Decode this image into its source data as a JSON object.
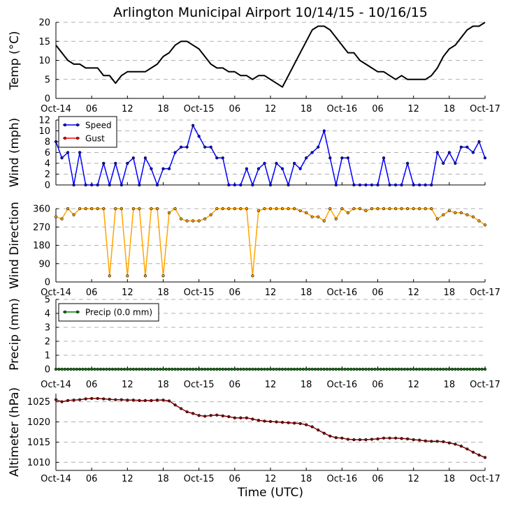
{
  "chart_data": {
    "type": "line",
    "title": "Arlington Municipal Airport 10/14/15 - 10/16/15",
    "xlabel": "Time (UTC)",
    "x_tick_labels": [
      "Oct-14",
      "06",
      "12",
      "18",
      "Oct-15",
      "06",
      "12",
      "18",
      "Oct-16",
      "06",
      "12",
      "18",
      "Oct-17"
    ],
    "x_range_hours": [
      0,
      72
    ],
    "panels": [
      {
        "id": "temp",
        "ylabel": "Temp (°C)",
        "ylim": [
          0,
          20
        ],
        "yticks": [
          0,
          5,
          10,
          15,
          20
        ],
        "series": [
          {
            "name": "Temp",
            "color": "#000000",
            "marker": "none",
            "x": [
              0,
              1,
              2,
              3,
              4,
              5,
              6,
              7,
              8,
              9,
              10,
              11,
              12,
              13,
              14,
              15,
              16,
              17,
              18,
              19,
              20,
              21,
              22,
              23,
              24,
              25,
              26,
              27,
              28,
              29,
              30,
              31,
              32,
              33,
              34,
              35,
              36,
              37,
              38,
              39,
              40,
              41,
              42,
              43,
              44,
              45,
              46,
              47,
              48,
              49,
              50,
              51,
              52,
              53,
              54,
              55,
              56,
              57,
              58,
              59,
              60,
              61,
              62,
              63,
              64,
              65,
              66,
              67,
              68,
              69,
              70,
              71,
              72
            ],
            "values": [
              14,
              12,
              10,
              9,
              9,
              8,
              8,
              8,
              6,
              6,
              4,
              6,
              7,
              7,
              7,
              7,
              8,
              9,
              11,
              12,
              14,
              15,
              15,
              14,
              13,
              11,
              9,
              8,
              8,
              7,
              7,
              6,
              6,
              5,
              6,
              6,
              5,
              4,
              3,
              6,
              9,
              12,
              15,
              18,
              19,
              19,
              18,
              16,
              14,
              12,
              12,
              10,
              9,
              8,
              7,
              7,
              6,
              5,
              6,
              5,
              5,
              5,
              5,
              6,
              8,
              11,
              13,
              14,
              16,
              18,
              19,
              19,
              20
            ]
          }
        ]
      },
      {
        "id": "wind",
        "ylabel": "Wind (mph)",
        "ylim": [
          0,
          12
        ],
        "yticks": [
          0,
          2,
          4,
          6,
          8,
          10,
          12
        ],
        "legend": {
          "placement": "upper-left",
          "entries": [
            {
              "label": "Speed",
              "color": "#0000ff"
            },
            {
              "label": "Gust",
              "color": "#ff0000"
            }
          ]
        },
        "series": [
          {
            "name": "Speed",
            "color": "#0000ff",
            "marker": "dot",
            "x": [
              0,
              1,
              2,
              3,
              4,
              5,
              6,
              7,
              8,
              9,
              10,
              11,
              12,
              13,
              14,
              15,
              16,
              17,
              18,
              19,
              20,
              21,
              22,
              23,
              24,
              25,
              26,
              27,
              28,
              29,
              30,
              31,
              32,
              33,
              34,
              35,
              36,
              37,
              38,
              39,
              40,
              41,
              42,
              43,
              44,
              45,
              46,
              47,
              48,
              49,
              50,
              51,
              52,
              53,
              54,
              55,
              56,
              57,
              58,
              59,
              60,
              61,
              62,
              63,
              64,
              65,
              66,
              67,
              68,
              69,
              70,
              71,
              72
            ],
            "values": [
              8,
              5,
              6,
              0,
              6,
              0,
              0,
              0,
              4,
              0,
              4,
              0,
              4,
              5,
              0,
              5,
              3,
              0,
              3,
              3,
              6,
              7,
              7,
              11,
              9,
              7,
              7,
              5,
              5,
              0,
              0,
              0,
              3,
              0,
              3,
              4,
              0,
              4,
              3,
              0,
              4,
              3,
              5,
              6,
              7,
              10,
              5,
              0,
              5,
              5,
              0,
              0,
              0,
              0,
              0,
              5,
              0,
              0,
              0,
              4,
              0,
              0,
              0,
              0,
              6,
              4,
              6,
              4,
              7,
              7,
              6,
              8,
              5
            ]
          },
          {
            "name": "Gust",
            "color": "#ff0000",
            "marker": "dot",
            "x": [],
            "values": []
          }
        ]
      },
      {
        "id": "direction",
        "ylabel": "Wind Direction",
        "ylim": [
          0,
          360
        ],
        "yticks": [
          0,
          90,
          180,
          270,
          360
        ],
        "series": [
          {
            "name": "Direction",
            "color": "#ffa500",
            "marker": "dot",
            "x": [
              0,
              1,
              2,
              3,
              4,
              5,
              6,
              7,
              8,
              9,
              10,
              11,
              12,
              13,
              14,
              15,
              16,
              17,
              18,
              19,
              20,
              21,
              22,
              23,
              24,
              25,
              26,
              27,
              28,
              29,
              30,
              31,
              32,
              33,
              34,
              35,
              36,
              37,
              38,
              39,
              40,
              41,
              42,
              43,
              44,
              45,
              46,
              47,
              48,
              49,
              50,
              51,
              52,
              53,
              54,
              55,
              56,
              57,
              58,
              59,
              60,
              61,
              62,
              63,
              64,
              65,
              66,
              67,
              68,
              69,
              70,
              71,
              72
            ],
            "values": [
              320,
              310,
              360,
              330,
              360,
              360,
              360,
              360,
              360,
              30,
              360,
              360,
              30,
              360,
              360,
              30,
              360,
              360,
              30,
              340,
              360,
              310,
              300,
              300,
              300,
              310,
              330,
              360,
              360,
              360,
              360,
              360,
              360,
              30,
              350,
              360,
              360,
              360,
              360,
              360,
              360,
              350,
              340,
              320,
              320,
              300,
              360,
              310,
              360,
              340,
              360,
              360,
              350,
              360,
              360,
              360,
              360,
              360,
              360,
              360,
              360,
              360,
              360,
              360,
              310,
              330,
              350,
              340,
              340,
              330,
              320,
              300,
              280
            ]
          }
        ]
      },
      {
        "id": "precip",
        "ylabel": "Precip (mm)",
        "ylim": [
          0,
          5
        ],
        "yticks": [
          0,
          1,
          2,
          3,
          4,
          5
        ],
        "legend": {
          "placement": "upper-left",
          "entries": [
            {
              "label": "Precip (0.0 mm)",
              "color": "#008000"
            }
          ]
        },
        "series": [
          {
            "name": "Precip (0.0 mm)",
            "color": "#008000",
            "marker": "dot",
            "constant": 0
          }
        ]
      },
      {
        "id": "altimeter",
        "ylabel": "Altimeter (hPa)",
        "ylim": [
          1008,
          1027
        ],
        "yticks": [
          1010,
          1015,
          1020,
          1025
        ],
        "series": [
          {
            "name": "Altimeter",
            "color": "#8b0000",
            "marker": "dot",
            "x": [
              0,
              1,
              2,
              3,
              4,
              5,
              6,
              7,
              8,
              9,
              10,
              11,
              12,
              13,
              14,
              15,
              16,
              17,
              18,
              19,
              20,
              21,
              22,
              23,
              24,
              25,
              26,
              27,
              28,
              29,
              30,
              31,
              32,
              33,
              34,
              35,
              36,
              37,
              38,
              39,
              40,
              41,
              42,
              43,
              44,
              45,
              46,
              47,
              48,
              49,
              50,
              51,
              52,
              53,
              54,
              55,
              56,
              57,
              58,
              59,
              60,
              61,
              62,
              63,
              64,
              65,
              66,
              67,
              68,
              69,
              70,
              71,
              72
            ],
            "values": [
              1025.5,
              1025,
              1025.3,
              1025.4,
              1025.5,
              1025.7,
              1025.8,
              1025.8,
              1025.7,
              1025.6,
              1025.5,
              1025.5,
              1025.4,
              1025.4,
              1025.3,
              1025.3,
              1025.3,
              1025.4,
              1025.4,
              1025.2,
              1024.2,
              1023.3,
              1022.5,
              1022.1,
              1021.6,
              1021.4,
              1021.6,
              1021.7,
              1021.5,
              1021.3,
              1021,
              1021,
              1021,
              1020.7,
              1020.4,
              1020.2,
              1020.1,
              1020,
              1019.9,
              1019.8,
              1019.7,
              1019.6,
              1019.3,
              1018.8,
              1018,
              1017.2,
              1016.5,
              1016.1,
              1016,
              1015.7,
              1015.6,
              1015.6,
              1015.6,
              1015.7,
              1015.8,
              1016,
              1016,
              1016,
              1015.9,
              1015.8,
              1015.6,
              1015.5,
              1015.3,
              1015.2,
              1015.2,
              1015.1,
              1014.8,
              1014.5,
              1014,
              1013.3,
              1012.5,
              1011.8,
              1011.2
            ]
          }
        ]
      }
    ]
  }
}
